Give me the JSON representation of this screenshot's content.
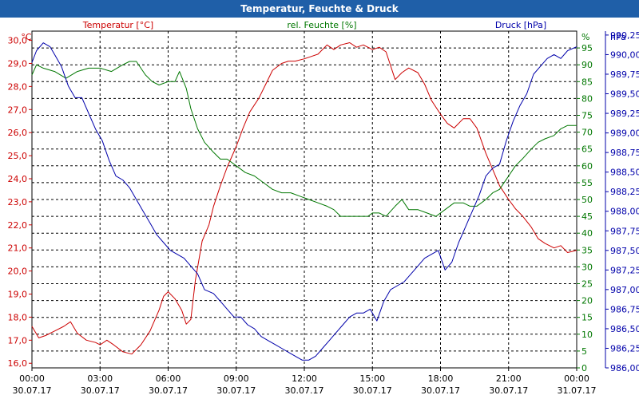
{
  "window": {
    "title": "Temperatur, Feuchte & Druck"
  },
  "chart_data": {
    "type": "line",
    "title": "Temperatur, Feuchte & Druck",
    "xlim": [
      0,
      24
    ],
    "x_ticks": [
      {
        "h": 0,
        "time": "00:00",
        "date": "30.07.17"
      },
      {
        "h": 3,
        "time": "03:00",
        "date": "30.07.17"
      },
      {
        "h": 6,
        "time": "06:00",
        "date": "30.07.17"
      },
      {
        "h": 9,
        "time": "09:00",
        "date": "30.07.17"
      },
      {
        "h": 12,
        "time": "12:00",
        "date": "30.07.17"
      },
      {
        "h": 15,
        "time": "15:00",
        "date": "30.07.17"
      },
      {
        "h": 18,
        "time": "18:00",
        "date": "30.07.17"
      },
      {
        "h": 21,
        "time": "21:00",
        "date": "30.07.17"
      },
      {
        "h": 24,
        "time": "00:00",
        "date": "31.07.17"
      }
    ],
    "axes": {
      "temp": {
        "unit": "°C",
        "label": "Temperatur [°C]",
        "min": 15.8,
        "max": 30.4,
        "color": "#cc0000",
        "ticks": [
          "16,0",
          "17,0",
          "18,0",
          "19,0",
          "20,0",
          "21,0",
          "22,0",
          "23,0",
          "24,0",
          "25,0",
          "26,0",
          "27,0",
          "28,0",
          "29,0",
          "30,0"
        ]
      },
      "hum": {
        "unit": "%",
        "label": "rel. Feuchte [%]",
        "min": 0,
        "max": 100,
        "color": "#007700",
        "ticks": [
          "0",
          "5",
          "10",
          "15",
          "20",
          "25",
          "30",
          "35",
          "40",
          "45",
          "50",
          "55",
          "60",
          "65",
          "70",
          "75",
          "80",
          "85",
          "90",
          "95"
        ]
      },
      "press": {
        "unit": "hPa",
        "label": "Druck [hPa]",
        "min": 986.0,
        "max": 990.3,
        "color": "#0000aa",
        "ticks": [
          "986,00",
          "986,25",
          "986,50",
          "986,75",
          "987,00",
          "987,25",
          "987,50",
          "987,75",
          "988,00",
          "988,25",
          "988,50",
          "988,75",
          "989,00",
          "989,25",
          "989,50",
          "989,75",
          "990,00",
          "990,25"
        ]
      }
    },
    "series": [
      {
        "name": "Temperatur",
        "axis": "temp",
        "color": "#cc0000",
        "x": [
          0,
          0.3,
          0.6,
          1,
          1.4,
          1.7,
          2,
          2.4,
          2.8,
          3,
          3.3,
          3.6,
          4,
          4.4,
          4.8,
          5.2,
          5.6,
          5.8,
          6,
          6.3,
          6.6,
          6.8,
          7,
          7.2,
          7.5,
          7.8,
          8,
          8.3,
          8.6,
          9,
          9.3,
          9.6,
          10,
          10.3,
          10.6,
          11,
          11.3,
          11.6,
          12,
          12.3,
          12.6,
          13,
          13.3,
          13.6,
          14,
          14.3,
          14.6,
          15,
          15.3,
          15.6,
          16,
          16.3,
          16.6,
          17,
          17.3,
          17.6,
          18,
          18.3,
          18.6,
          19,
          19.3,
          19.6,
          20,
          20.3,
          20.6,
          21,
          21.3,
          21.6,
          22,
          22.3,
          22.6,
          23,
          23.3,
          23.6,
          24
        ],
        "values": [
          17.6,
          17.1,
          17.2,
          17.4,
          17.6,
          17.8,
          17.3,
          17.0,
          16.9,
          16.8,
          17.0,
          16.8,
          16.5,
          16.4,
          16.8,
          17.4,
          18.3,
          18.9,
          19.1,
          18.8,
          18.3,
          17.7,
          17.9,
          19.6,
          21.3,
          22.0,
          22.8,
          23.7,
          24.5,
          25.4,
          26.2,
          26.9,
          27.5,
          28.1,
          28.7,
          29.0,
          29.1,
          29.1,
          29.2,
          29.3,
          29.4,
          29.8,
          29.6,
          29.8,
          29.9,
          29.7,
          29.8,
          29.6,
          29.7,
          29.5,
          28.3,
          28.6,
          28.8,
          28.6,
          28.1,
          27.4,
          26.8,
          26.4,
          26.2,
          26.6,
          26.6,
          26.2,
          25.1,
          24.4,
          23.7,
          23.1,
          22.7,
          22.4,
          21.9,
          21.4,
          21.2,
          21.0,
          21.1,
          20.8,
          20.9
        ]
      },
      {
        "name": "rel. Feuchte",
        "axis": "hum",
        "color": "#007700",
        "x": [
          0,
          0.2,
          0.5,
          1,
          1.5,
          2,
          2.5,
          3,
          3.5,
          4,
          4.3,
          4.6,
          5,
          5.3,
          5.6,
          6,
          6.3,
          6.5,
          6.8,
          7,
          7.3,
          7.6,
          8,
          8.3,
          8.6,
          9,
          9.4,
          9.8,
          10.2,
          10.6,
          11,
          11.4,
          11.8,
          12.2,
          12.6,
          13,
          13.3,
          13.6,
          14,
          14.4,
          14.8,
          15,
          15.3,
          15.6,
          16,
          16.3,
          16.6,
          17,
          17.4,
          17.8,
          18.2,
          18.6,
          19,
          19.3,
          19.6,
          20,
          20.3,
          20.6,
          21,
          21.3,
          21.6,
          22,
          22.3,
          22.6,
          23,
          23.3,
          23.6,
          24
        ],
        "values": [
          87,
          90,
          89,
          88,
          86,
          88,
          89,
          89,
          88,
          90,
          91,
          91,
          87,
          85,
          84,
          85,
          85,
          88,
          83,
          77,
          71,
          67,
          64,
          62,
          62,
          60,
          58,
          57,
          55,
          53,
          52,
          52,
          51,
          50,
          49,
          48,
          47,
          45,
          45,
          45,
          45,
          46,
          46,
          45,
          48,
          50,
          47,
          47,
          46,
          45,
          47,
          49,
          49,
          48,
          48,
          50,
          52,
          53,
          57,
          60,
          62,
          65,
          67,
          68,
          69,
          71,
          72,
          72
        ]
      },
      {
        "name": "Druck",
        "axis": "press",
        "color": "#0000aa",
        "x": [
          0,
          0.2,
          0.5,
          0.8,
          1,
          1.3,
          1.6,
          1.9,
          2.2,
          2.5,
          2.8,
          3.1,
          3.4,
          3.7,
          4,
          4.3,
          4.6,
          4.9,
          5.2,
          5.5,
          5.8,
          6.1,
          6.4,
          6.7,
          7,
          7.3,
          7.6,
          8,
          8.3,
          8.6,
          8.9,
          9.2,
          9.5,
          9.8,
          10.1,
          10.4,
          10.7,
          11,
          11.3,
          11.6,
          11.9,
          12.2,
          12.5,
          12.8,
          13.1,
          13.4,
          13.7,
          14,
          14.3,
          14.6,
          14.9,
          15.2,
          15.5,
          15.8,
          16.1,
          16.4,
          16.7,
          17,
          17.3,
          17.6,
          17.9,
          18.2,
          18.5,
          18.8,
          19.1,
          19.4,
          19.7,
          20,
          20.3,
          20.6,
          20.9,
          21.2,
          21.5,
          21.8,
          22.1,
          22.4,
          22.7,
          23,
          23.3,
          23.6,
          24
        ],
        "values": [
          989.9,
          990.05,
          990.15,
          990.1,
          990.0,
          989.85,
          989.6,
          989.45,
          989.45,
          989.25,
          989.05,
          988.9,
          988.65,
          988.45,
          988.4,
          988.3,
          988.15,
          988.0,
          987.85,
          987.7,
          987.6,
          987.5,
          987.45,
          987.4,
          987.3,
          987.2,
          987.0,
          986.95,
          986.85,
          986.75,
          986.65,
          986.65,
          986.55,
          986.5,
          986.4,
          986.35,
          986.3,
          986.25,
          986.2,
          986.15,
          986.1,
          986.1,
          986.15,
          986.25,
          986.35,
          986.45,
          986.55,
          986.65,
          986.7,
          986.7,
          986.75,
          986.6,
          986.85,
          987.0,
          987.05,
          987.1,
          987.2,
          987.3,
          987.4,
          987.45,
          987.5,
          987.25,
          987.35,
          987.6,
          987.8,
          988.0,
          988.2,
          988.45,
          988.55,
          988.6,
          988.9,
          989.15,
          989.35,
          989.5,
          989.75,
          989.85,
          989.95,
          990.0,
          989.95,
          990.05,
          990.1
        ]
      }
    ]
  }
}
